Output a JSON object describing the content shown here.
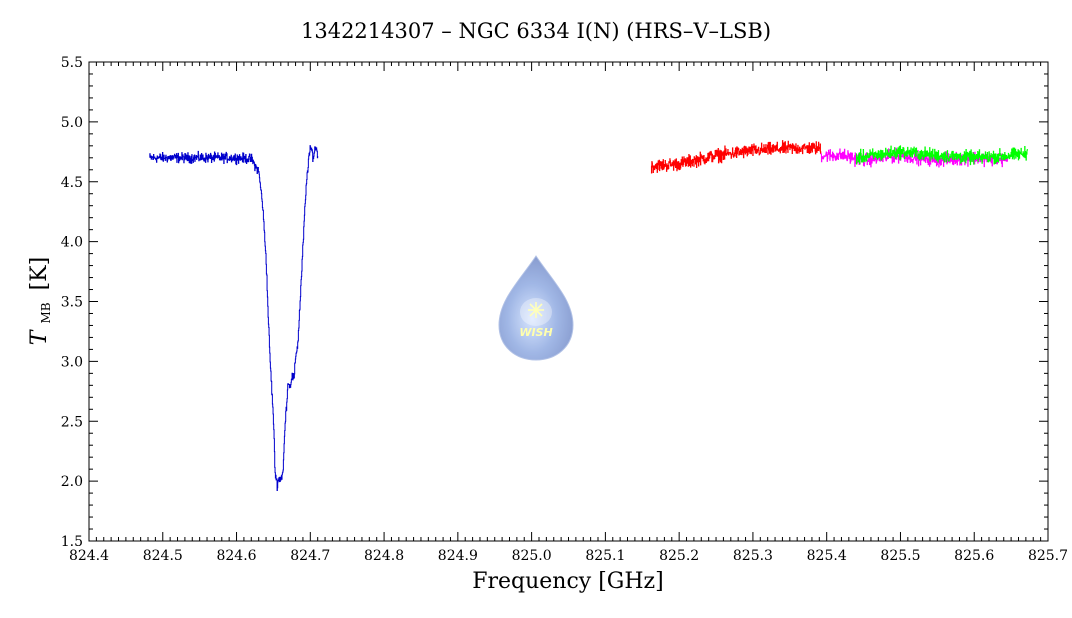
{
  "chart_data": {
    "type": "line",
    "title": "1342214307 – NGC 6334 I(N) (HRS–V–LSB)",
    "xlabel": "Frequency [GHz]",
    "ylabel_main": "T",
    "ylabel_sub": "MB",
    "ylabel_unit": "[K]",
    "xlim": [
      824.4,
      825.7
    ],
    "ylim": [
      1.5,
      5.5
    ],
    "x_ticks": [
      824.4,
      824.5,
      824.6,
      824.7,
      824.8,
      824.9,
      825.0,
      825.1,
      825.2,
      825.3,
      825.4,
      825.5,
      825.6,
      825.7
    ],
    "x_tick_labels": [
      "824.4",
      "824.5",
      "824.6",
      "824.7",
      "824.8",
      "824.9",
      "825.0",
      "825.1",
      "825.2",
      "825.3",
      "825.4",
      "825.5",
      "825.6",
      "825.7"
    ],
    "y_ticks": [
      1.5,
      2.0,
      2.5,
      3.0,
      3.5,
      4.0,
      4.5,
      5.0,
      5.5
    ],
    "y_tick_labels": [
      "1.5",
      "2.0",
      "2.5",
      "3.0",
      "3.5",
      "4.0",
      "4.5",
      "5.0",
      "5.5"
    ],
    "grid": false,
    "legend": "none",
    "series": [
      {
        "color": "#0000cc",
        "x": [
          824.482,
          824.6,
          824.62,
          824.63,
          824.635,
          824.64,
          824.642,
          824.645,
          824.65,
          824.652,
          824.655,
          824.657,
          824.66,
          824.663,
          824.665,
          824.668,
          824.67,
          824.672,
          824.675,
          824.678,
          824.68,
          824.683,
          824.686,
          824.689,
          824.692,
          824.695,
          824.698,
          824.701,
          824.704,
          824.707,
          824.71
        ],
        "y": [
          4.7,
          4.7,
          4.69,
          4.58,
          4.32,
          3.85,
          3.5,
          3.05,
          2.5,
          2.08,
          1.97,
          2.02,
          2.02,
          2.08,
          2.4,
          2.68,
          2.85,
          2.78,
          2.88,
          2.85,
          3.05,
          3.15,
          3.5,
          3.85,
          4.22,
          4.52,
          4.72,
          4.78,
          4.7,
          4.8,
          4.72
        ],
        "noise": 0.06
      },
      {
        "color": "#ff0000",
        "x": [
          825.162,
          825.2,
          825.25,
          825.3,
          825.35,
          825.392
        ],
        "y": [
          4.63,
          4.65,
          4.72,
          4.76,
          4.78,
          4.78
        ],
        "noise": 0.08
      },
      {
        "color": "#ff00ff",
        "x": [
          825.392,
          825.42,
          825.45,
          825.5,
          825.55,
          825.6,
          825.645
        ],
        "y": [
          4.72,
          4.72,
          4.68,
          4.72,
          4.68,
          4.7,
          4.68
        ],
        "noise": 0.08
      },
      {
        "color": "#00ff00",
        "x": [
          825.44,
          825.5,
          825.55,
          825.6,
          825.65,
          825.672
        ],
        "y": [
          4.7,
          4.75,
          4.72,
          4.7,
          4.72,
          4.74
        ],
        "noise": 0.08
      }
    ]
  },
  "watermark_text": "WISH"
}
